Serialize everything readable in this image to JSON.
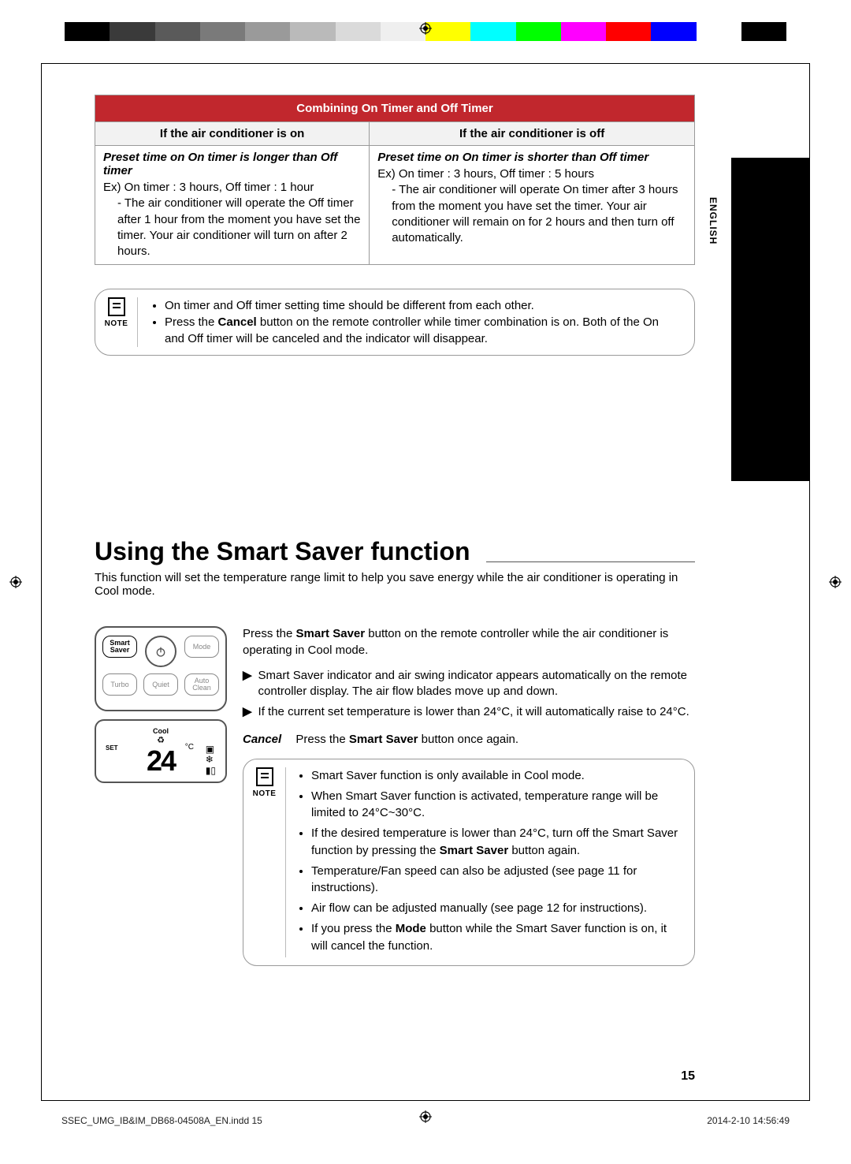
{
  "print": {
    "color_bar": [
      "#000000",
      "#3a3a3a",
      "#5a5a5a",
      "#7a7a7a",
      "#9a9a9a",
      "#bababa",
      "#dadada",
      "#efefef",
      "#ffff00",
      "#00ffff",
      "#00ff00",
      "#ff00ff",
      "#ff0000",
      "#0000ff",
      "#ffffff",
      "#000000"
    ],
    "footer_left": "SSEC_UMG_IB&IM_DB68-04508A_EN.indd   15",
    "footer_right": "2014-2-10   14:56:49",
    "side_language": "ENGLISH"
  },
  "timer_table": {
    "title": "Combining On Timer and Off Timer",
    "col_left": "If the air conditioner is on",
    "col_right": "If the air conditioner is off",
    "left_cell": {
      "heading": "Preset time on On timer is longer than Off timer",
      "ex": "Ex) On timer : 3 hours, Off timer : 1 hour",
      "bullet": "- The air conditioner will operate the Off timer after 1 hour from the moment you have set the timer. Your air conditioner will turn on after 2 hours."
    },
    "right_cell": {
      "heading": "Preset time on On timer is shorter than Off timer",
      "ex": "Ex) On timer : 3 hours, Off timer : 5 hours",
      "bullet": "- The air conditioner will operate On timer after 3 hours from the moment you have set the timer. Your air conditioner will remain on for 2 hours and then turn off automatically."
    }
  },
  "note1": {
    "label": "NOTE",
    "items": [
      "On timer and Off timer setting time should be different from each other.",
      "Press the <b>Cancel</b> button on the remote controller while timer combination is on. Both of the On and Off timer will be canceled and the indicator will disappear."
    ]
  },
  "section": {
    "title": "Using the Smart Saver function",
    "intro": "This function will set the temperature range limit to help you save energy while the air conditioner is operating in Cool mode."
  },
  "remote": {
    "btn_smart": "Smart Saver",
    "btn_mode": "Mode",
    "btn_turbo": "Turbo",
    "btn_quiet": "Quiet",
    "btn_auto": "Auto Clean",
    "disp_cool": "Cool",
    "disp_set": "SET",
    "disp_temp": "24",
    "disp_unit": "°C"
  },
  "instr": {
    "lead": "Press the <b>Smart Saver</b> button on the remote controller while the air conditioner is operating in Cool mode.",
    "a1": "Smart Saver indicator and air swing indicator appears automatically on the remote controller display. The air flow blades move up and down.",
    "a2": "If the current set temperature is lower than 24°C, it will automatically raise to 24°C.",
    "cancel_label": "Cancel",
    "cancel_text": "Press the <b>Smart Saver</b> button once again."
  },
  "note2": {
    "label": "NOTE",
    "items": [
      "Smart Saver function is only available in Cool mode.",
      "When Smart Saver function is activated, temperature range will be limited to 24°C~30°C.",
      "If the desired temperature is lower than 24°C, turn off the Smart Saver function by pressing the <b>Smart Saver</b> button again.",
      "Temperature/Fan speed can also be adjusted (see page 11 for instructions).",
      "Air flow can be adjusted manually (see page 12 for instructions).",
      "If you press the <b>Mode</b> button while the Smart Saver function is on, it will cancel the function."
    ]
  },
  "page_number": "15"
}
